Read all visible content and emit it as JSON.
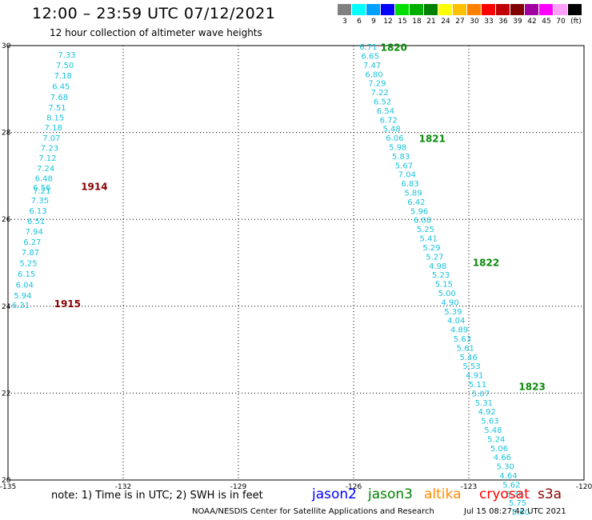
{
  "title": "12:00 – 23:59 UTC 07/12/2021",
  "subtitle": "12 hour collection of altimeter wave heights",
  "colorbar": {
    "unit": "(ft)",
    "entries": [
      {
        "label": "3",
        "color": "#808080"
      },
      {
        "label": "6",
        "color": "#00ffff"
      },
      {
        "label": "9",
        "color": "#00a0ff"
      },
      {
        "label": "12",
        "color": "#0000ff"
      },
      {
        "label": "15",
        "color": "#00e000"
      },
      {
        "label": "18",
        "color": "#00b000"
      },
      {
        "label": "21",
        "color": "#008000"
      },
      {
        "label": "24",
        "color": "#ffff00"
      },
      {
        "label": "27",
        "color": "#ffc000"
      },
      {
        "label": "30",
        "color": "#ff8000"
      },
      {
        "label": "33",
        "color": "#ff0000"
      },
      {
        "label": "36",
        "color": "#c00000"
      },
      {
        "label": "39",
        "color": "#800000"
      },
      {
        "label": "42",
        "color": "#a000a0"
      },
      {
        "label": "45",
        "color": "#ff00ff"
      },
      {
        "label": "70",
        "color": "#ffa0ff"
      },
      {
        "label": "",
        "color": "#000000"
      }
    ]
  },
  "axes": {
    "y_ticks": [
      "30",
      "28",
      "26",
      "24",
      "22",
      "20"
    ],
    "x_ticks": [
      "-135",
      "-132",
      "-129",
      "-126",
      "-123",
      "-120"
    ]
  },
  "tracks": [
    {
      "passes": [
        {
          "label": "1914",
          "color": "#8b0000",
          "lon": -133.1,
          "lat": 26.75
        },
        {
          "label": "1915",
          "color": "#8b0000",
          "lon": -133.8,
          "lat": 24.05
        }
      ],
      "points": [
        {
          "lon": -133.7,
          "lat": 29.8,
          "swh": "7.33"
        },
        {
          "lon": -133.75,
          "lat": 29.56,
          "swh": "7.50"
        },
        {
          "lon": -133.8,
          "lat": 29.32,
          "swh": "7.18"
        },
        {
          "lon": -133.85,
          "lat": 29.07,
          "swh": "6.45"
        },
        {
          "lon": -133.9,
          "lat": 28.82,
          "swh": "7.68"
        },
        {
          "lon": -133.95,
          "lat": 28.58,
          "swh": "7.51"
        },
        {
          "lon": -134.0,
          "lat": 28.35,
          "swh": "8.15"
        },
        {
          "lon": -134.05,
          "lat": 28.12,
          "swh": "7.18"
        },
        {
          "lon": -134.1,
          "lat": 27.88,
          "swh": "7.07"
        },
        {
          "lon": -134.15,
          "lat": 27.65,
          "swh": "7.23"
        },
        {
          "lon": -134.2,
          "lat": 27.42,
          "swh": "7.12"
        },
        {
          "lon": -134.25,
          "lat": 27.18,
          "swh": "7.24"
        },
        {
          "lon": -134.3,
          "lat": 26.95,
          "swh": "6.48"
        },
        {
          "lon": -134.35,
          "lat": 26.74,
          "swh": "6.56"
        },
        {
          "lon": -134.35,
          "lat": 26.67,
          "swh": "7.21"
        },
        {
          "lon": -134.4,
          "lat": 26.45,
          "swh": "7.35"
        },
        {
          "lon": -134.45,
          "lat": 26.21,
          "swh": "6.13"
        },
        {
          "lon": -134.5,
          "lat": 25.97,
          "swh": "6.51"
        },
        {
          "lon": -134.55,
          "lat": 25.73,
          "swh": "7.94"
        },
        {
          "lon": -134.6,
          "lat": 25.49,
          "swh": "6.27"
        },
        {
          "lon": -134.65,
          "lat": 25.25,
          "swh": "7.87"
        },
        {
          "lon": -134.7,
          "lat": 25.0,
          "swh": "5.25"
        },
        {
          "lon": -134.75,
          "lat": 24.75,
          "swh": "6.15"
        },
        {
          "lon": -134.8,
          "lat": 24.5,
          "swh": "6.04"
        },
        {
          "lon": -134.85,
          "lat": 24.25,
          "swh": "5.94"
        },
        {
          "lon": -134.9,
          "lat": 24.03,
          "swh": "6.31"
        }
      ]
    },
    {
      "passes": [
        {
          "label": "1820",
          "color": "#0a8a0a",
          "lon": -125.3,
          "lat": 29.95
        },
        {
          "label": "1821",
          "color": "#0a8a0a",
          "lon": -124.3,
          "lat": 27.85
        },
        {
          "label": "1822",
          "color": "#0a8a0a",
          "lon": -122.9,
          "lat": 25.0
        },
        {
          "label": "1823",
          "color": "#0a8a0a",
          "lon": -121.7,
          "lat": 22.15
        }
      ],
      "points": [
        {
          "lon": -125.85,
          "lat": 29.98,
          "swh": "6.71"
        },
        {
          "lon": -125.8,
          "lat": 29.77,
          "swh": "6.65"
        },
        {
          "lon": -125.75,
          "lat": 29.56,
          "swh": "7.47"
        },
        {
          "lon": -125.7,
          "lat": 29.35,
          "swh": "6.80"
        },
        {
          "lon": -125.62,
          "lat": 29.14,
          "swh": "7.29"
        },
        {
          "lon": -125.55,
          "lat": 28.93,
          "swh": "7.22"
        },
        {
          "lon": -125.48,
          "lat": 28.72,
          "swh": "6.52"
        },
        {
          "lon": -125.4,
          "lat": 28.51,
          "swh": "6.54"
        },
        {
          "lon": -125.32,
          "lat": 28.3,
          "swh": "6.72"
        },
        {
          "lon": -125.24,
          "lat": 28.09,
          "swh": "5.48"
        },
        {
          "lon": -125.16,
          "lat": 27.88,
          "swh": "6.06"
        },
        {
          "lon": -125.08,
          "lat": 27.67,
          "swh": "5.98"
        },
        {
          "lon": -125.0,
          "lat": 27.46,
          "swh": "5.83"
        },
        {
          "lon": -124.92,
          "lat": 27.25,
          "swh": "5.67"
        },
        {
          "lon": -124.84,
          "lat": 27.04,
          "swh": "7.04"
        },
        {
          "lon": -124.76,
          "lat": 26.83,
          "swh": "6.83"
        },
        {
          "lon": -124.68,
          "lat": 26.62,
          "swh": "5.89"
        },
        {
          "lon": -124.6,
          "lat": 26.41,
          "swh": "6.42"
        },
        {
          "lon": -124.52,
          "lat": 26.2,
          "swh": "5.96"
        },
        {
          "lon": -124.44,
          "lat": 25.99,
          "swh": "6.08"
        },
        {
          "lon": -124.36,
          "lat": 25.78,
          "swh": "5.25"
        },
        {
          "lon": -124.28,
          "lat": 25.57,
          "swh": "5.41"
        },
        {
          "lon": -124.2,
          "lat": 25.36,
          "swh": "5.29"
        },
        {
          "lon": -124.12,
          "lat": 25.15,
          "swh": "5.27"
        },
        {
          "lon": -124.04,
          "lat": 24.94,
          "swh": "4.98"
        },
        {
          "lon": -123.96,
          "lat": 24.73,
          "swh": "5.23"
        },
        {
          "lon": -123.88,
          "lat": 24.52,
          "swh": "5.15"
        },
        {
          "lon": -123.8,
          "lat": 24.31,
          "swh": "5.00"
        },
        {
          "lon": -123.72,
          "lat": 24.1,
          "swh": "4.90"
        },
        {
          "lon": -123.64,
          "lat": 23.89,
          "swh": "5.39"
        },
        {
          "lon": -123.56,
          "lat": 23.68,
          "swh": "4.04"
        },
        {
          "lon": -123.48,
          "lat": 23.47,
          "swh": "4.89"
        },
        {
          "lon": -123.4,
          "lat": 23.26,
          "swh": "5.63"
        },
        {
          "lon": -123.32,
          "lat": 23.05,
          "swh": "5.61"
        },
        {
          "lon": -123.24,
          "lat": 22.84,
          "swh": "5.46"
        },
        {
          "lon": -123.16,
          "lat": 22.63,
          "swh": "5.53"
        },
        {
          "lon": -123.08,
          "lat": 22.42,
          "swh": "4.91"
        },
        {
          "lon": -123.0,
          "lat": 22.21,
          "swh": "5.11"
        },
        {
          "lon": -122.92,
          "lat": 22.0,
          "swh": "5.07"
        },
        {
          "lon": -122.84,
          "lat": 21.79,
          "swh": "5.31"
        },
        {
          "lon": -122.76,
          "lat": 21.58,
          "swh": "4.92"
        },
        {
          "lon": -122.68,
          "lat": 21.37,
          "swh": "5.63"
        },
        {
          "lon": -122.6,
          "lat": 21.16,
          "swh": "5.48"
        },
        {
          "lon": -122.52,
          "lat": 20.95,
          "swh": "5.24"
        },
        {
          "lon": -122.44,
          "lat": 20.74,
          "swh": "5.06"
        },
        {
          "lon": -122.36,
          "lat": 20.53,
          "swh": "4.66"
        },
        {
          "lon": -122.28,
          "lat": 20.32,
          "swh": "5.30"
        },
        {
          "lon": -122.2,
          "lat": 20.11,
          "swh": "4.64"
        },
        {
          "lon": -122.12,
          "lat": 19.9,
          "swh": "5.62"
        },
        {
          "lon": -122.04,
          "lat": 19.69,
          "swh": "5.36"
        },
        {
          "lon": -121.96,
          "lat": 19.48,
          "swh": "5.75"
        },
        {
          "lon": -121.88,
          "lat": 19.27,
          "swh": "5.60"
        }
      ]
    }
  ],
  "note": "note: 1) Time is in UTC; 2) SWH is in feet",
  "satellites": [
    {
      "name": "jason2",
      "color": "#0000ff"
    },
    {
      "name": "jason3",
      "color": "#008000"
    },
    {
      "name": "altika",
      "color": "#ff8c00"
    },
    {
      "name": "cryosat",
      "color": "#ff0000"
    },
    {
      "name": "s3a",
      "color": "#8b0000"
    }
  ],
  "credit": "NOAA/NESDIS Center for Satellite Applications and Research",
  "timestamp": "Jul 15 08:27:42 UTC 2021"
}
